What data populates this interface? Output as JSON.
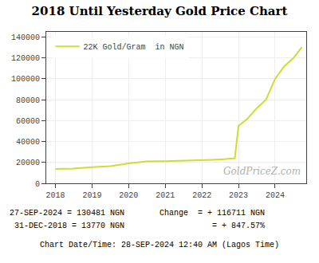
{
  "chart_data": {
    "type": "line",
    "title": "2018 Until Yesterday Gold Price Chart",
    "x": [
      2018.0,
      2018.5,
      2019.0,
      2019.5,
      2020.0,
      2020.5,
      2021.0,
      2021.5,
      2022.0,
      2022.3,
      2022.6,
      2022.9,
      2023.0,
      2023.25,
      2023.5,
      2023.75,
      2024.0,
      2024.25,
      2024.5,
      2024.73
    ],
    "series": [
      {
        "name": "22K Gold/Gram  in NGN",
        "color": "#ccdd33",
        "values": [
          13770,
          14200,
          15500,
          16500,
          19000,
          21000,
          21200,
          21500,
          22000,
          22500,
          23000,
          24000,
          55000,
          62000,
          72000,
          80000,
          100000,
          112000,
          120000,
          130481
        ]
      }
    ],
    "xlim": [
      2017.75,
      2024.85
    ],
    "xticks": [
      2018,
      2019,
      2020,
      2021,
      2022,
      2023,
      2024
    ],
    "ylim": [
      0,
      145000
    ],
    "yticks": [
      0,
      20000,
      40000,
      60000,
      80000,
      100000,
      120000,
      140000
    ],
    "grid": true,
    "legend": "upper left",
    "annotations": [
      "GoldPriceZ.com",
      "27-SEP-2024 = 130481 NGN",
      " 31-DEC-2018 = 13770 NGN",
      "Change  = + 116711 NGN",
      "           = + 847.57%",
      "Chart Date/Time: 28-SEP-2024 12:40 AM (Lagos Time)"
    ]
  }
}
